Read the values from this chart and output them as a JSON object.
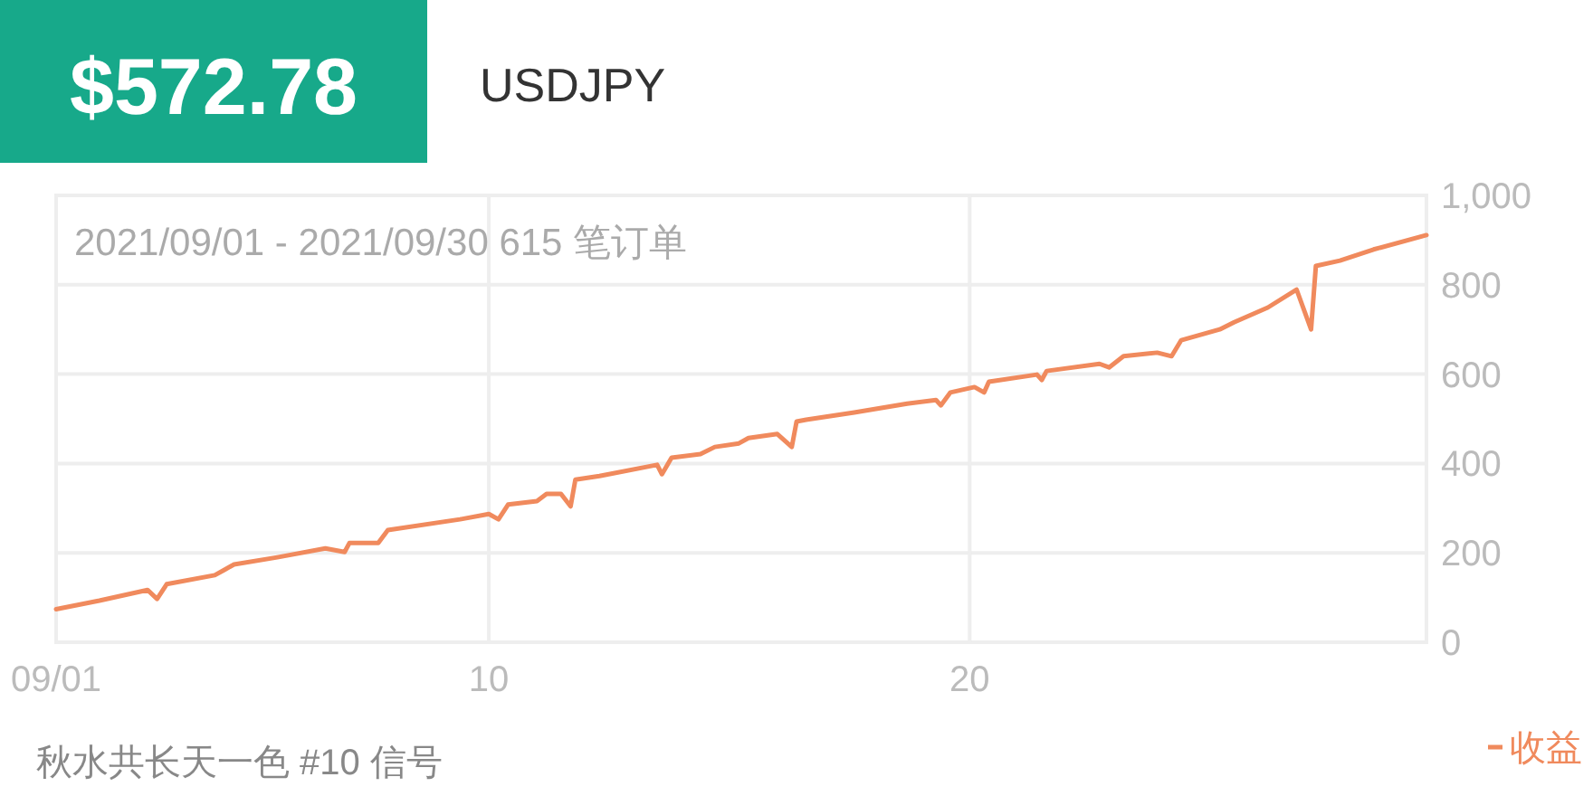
{
  "chart_data": {
    "type": "line",
    "title": "$572.78",
    "subtitle": "USDJPY",
    "annotations": [
      "2021/09/01 - 2021/09/30 615 笔订单",
      "秋水共长天一色 #10 信号"
    ],
    "x": [
      1.0,
      1.9,
      2.9,
      3.1,
      3.3,
      4.3,
      4.5,
      4.7,
      5.6,
      6.6,
      7.0,
      7.1,
      7.7,
      7.9,
      9.4,
      10.0,
      10.2,
      10.4,
      11.0,
      11.2,
      11.5,
      11.7,
      11.8,
      12.3,
      13.5,
      13.6,
      13.8,
      14.4,
      14.7,
      15.2,
      15.4,
      16.0,
      16.3,
      16.4,
      16.6,
      17.6,
      18.7,
      19.3,
      19.4,
      19.6,
      20.1,
      20.3,
      20.4,
      21.4,
      21.5,
      21.6,
      22.7,
      22.9,
      23.2,
      23.9,
      24.2,
      24.4,
      25.2,
      25.5,
      26.2,
      26.8,
      27.1,
      27.2,
      27.7,
      28.4,
      29.5
    ],
    "series": [
      {
        "name": "收益",
        "color": "#f08a5d",
        "values": [
          74,
          93,
          117,
          97,
          130,
          150,
          162,
          174,
          190,
          210,
          202,
          222,
          222,
          251,
          275,
          287,
          275,
          308,
          316,
          332,
          332,
          304,
          364,
          372,
          397,
          376,
          413,
          421,
          437,
          445,
          457,
          466,
          437,
          494,
          498,
          514,
          534,
          542,
          530,
          559,
          571,
          559,
          583,
          599,
          587,
          607,
          623,
          615,
          640,
          648,
          640,
          676,
          700,
          716,
          749,
          789,
          700,
          842,
          854,
          879,
          911
        ]
      }
    ],
    "xlim": [
      1,
      29.5
    ],
    "xticks": [
      {
        "value": 1,
        "label": "09/01"
      },
      10,
      20
    ],
    "ylim": [
      0,
      1000
    ],
    "yticks": [
      0,
      200,
      400,
      600,
      800,
      {
        "value": 1000,
        "label": "1,000"
      }
    ],
    "grid": true,
    "legend": "bottom right"
  }
}
